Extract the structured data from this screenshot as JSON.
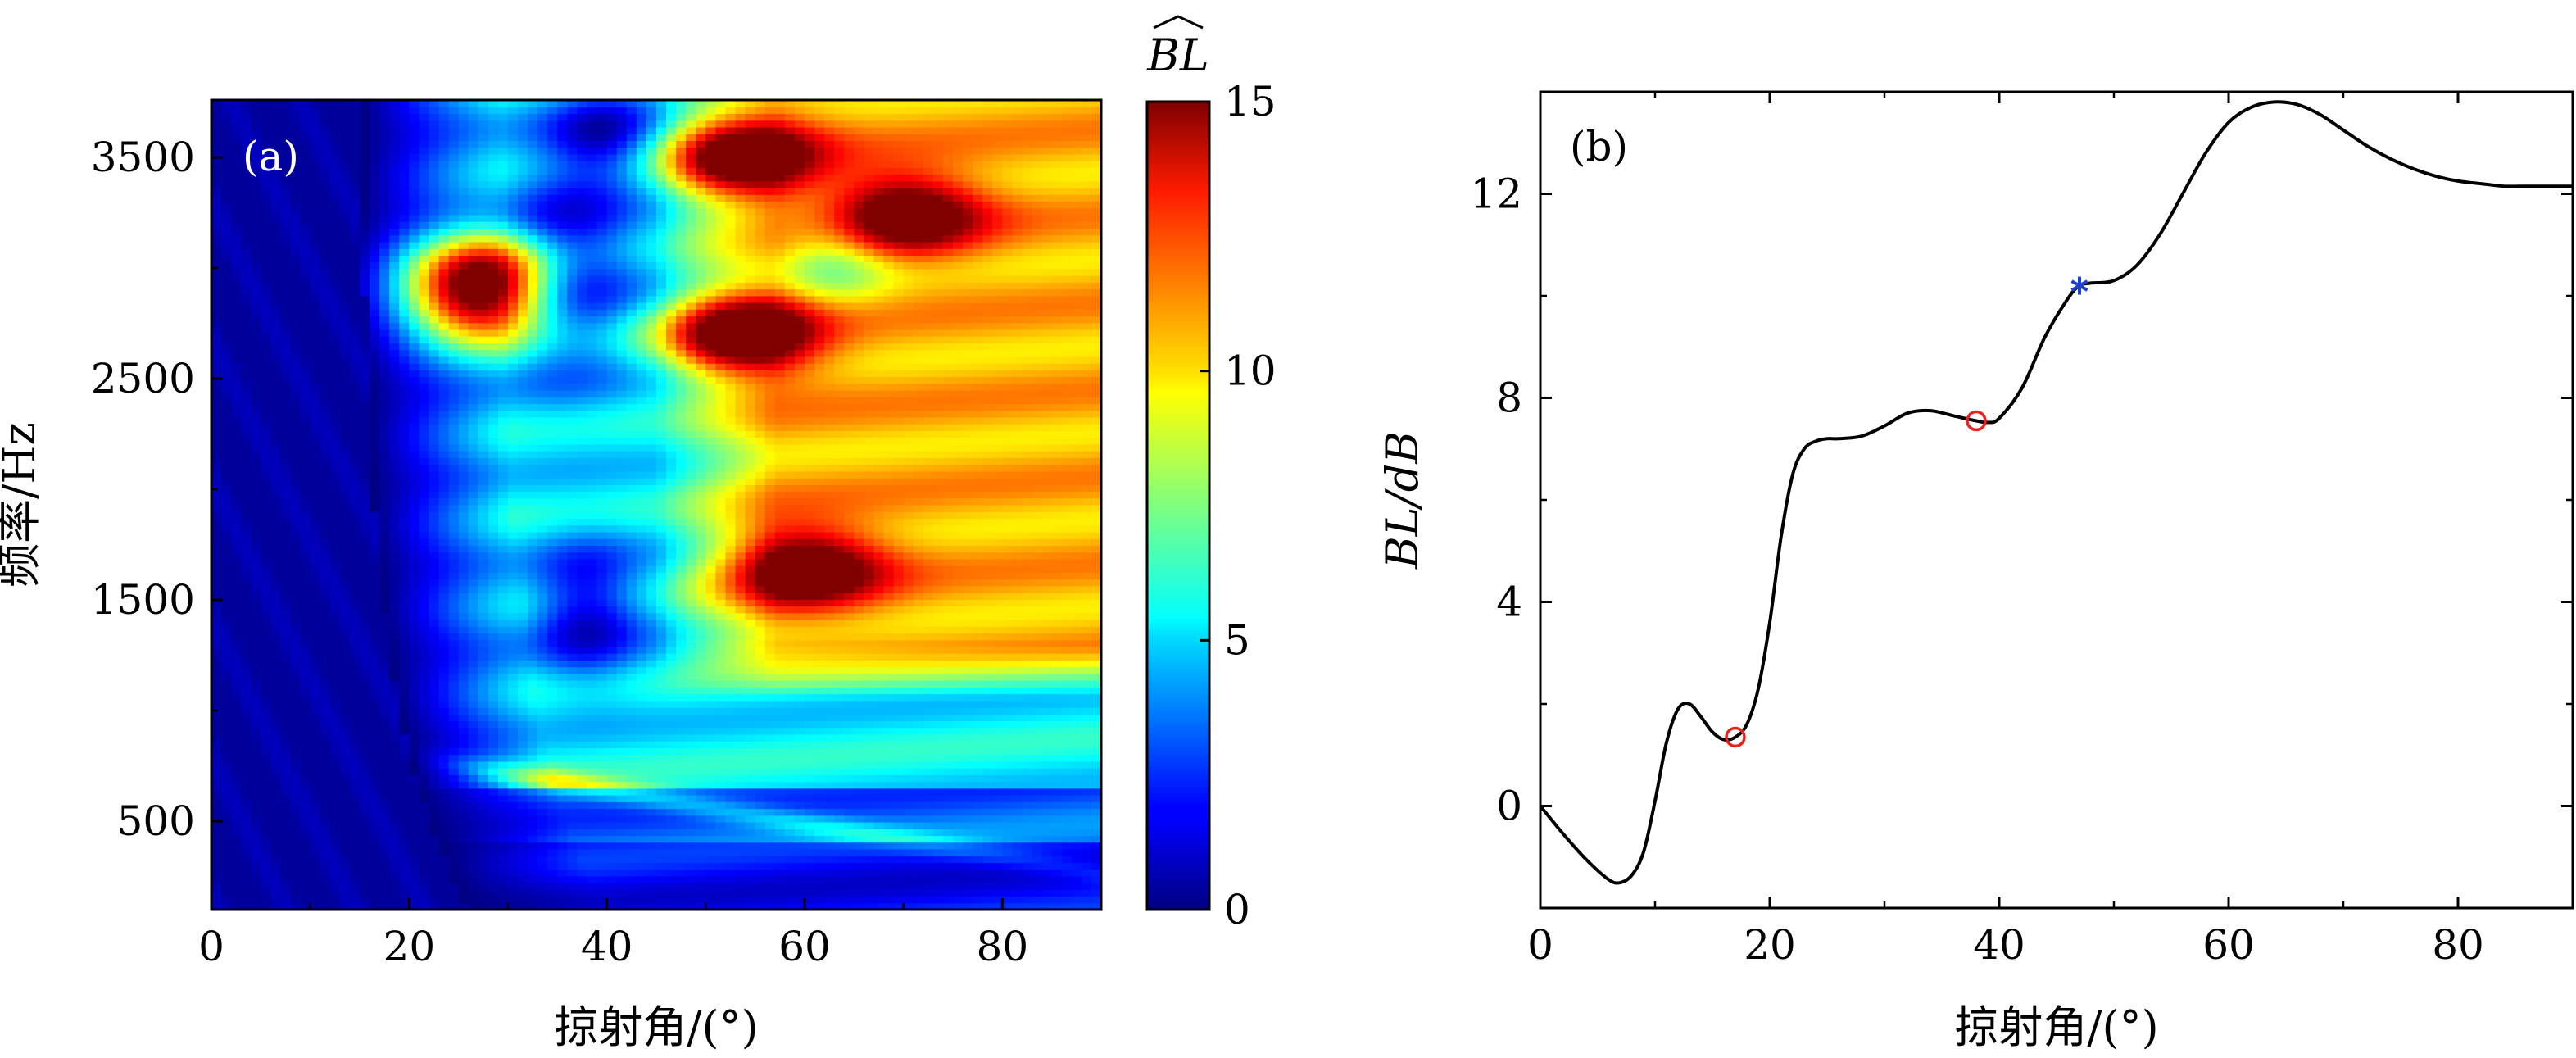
{
  "chart_data": [
    {
      "type": "heatmap",
      "panel_label": "(a)",
      "xlabel": "掠射角/(°)",
      "ylabel": "频率/Hz",
      "xlim": [
        0,
        90
      ],
      "ylim": [
        100,
        3760
      ],
      "x_ticks": [
        0,
        20,
        40,
        60,
        80
      ],
      "x_tick_labels": [
        "0",
        "20",
        "40",
        "60",
        "80"
      ],
      "y_ticks": [
        500,
        1500,
        2500,
        3500
      ],
      "y_tick_labels": [
        "500",
        "1500",
        "2500",
        "3500"
      ],
      "colorbar": {
        "title": "BL",
        "title_accent": "hat",
        "range": [
          0,
          15
        ],
        "ticks": [
          0,
          5,
          10,
          15
        ],
        "tick_labels": [
          "0",
          "5",
          "10",
          "15"
        ],
        "colormap": "jet"
      },
      "features": {
        "low_region_edge_deg_at_low_freq": 30,
        "low_region_edge_deg_at_high_freq": 19,
        "hotspots": [
          {
            "angle": 53,
            "freq": 2700,
            "value": 15
          },
          {
            "angle": 53,
            "freq": 3500,
            "value": 14.5
          },
          {
            "angle": 27,
            "freq": 2830,
            "value": 14.5
          },
          {
            "angle": 27,
            "freq": 3000,
            "value": 13.5
          },
          {
            "angle": 70,
            "freq": 3250,
            "value": 13
          },
          {
            "angle": 60,
            "freq": 1650,
            "value": 13
          }
        ]
      }
    },
    {
      "type": "line",
      "panel_label": "(b)",
      "xlabel": "掠射角/(°)",
      "ylabel": "BL/dB",
      "xlim": [
        0,
        90
      ],
      "ylim": [
        -2,
        14
      ],
      "x_ticks": [
        0,
        20,
        40,
        60,
        80
      ],
      "x_tick_labels": [
        "0",
        "20",
        "40",
        "60",
        "80"
      ],
      "y_ticks": [
        0,
        4,
        8,
        12
      ],
      "y_tick_labels": [
        "0",
        "4",
        "8",
        "12"
      ],
      "series": [
        {
          "name": "BL",
          "color": "#000000",
          "x": [
            0,
            2,
            4,
            6,
            7,
            8,
            9,
            10,
            11,
            12,
            13,
            14,
            15,
            16,
            17,
            18,
            19,
            20,
            21,
            22,
            23,
            24,
            25,
            26,
            28,
            30,
            32,
            34,
            36,
            38,
            39,
            40,
            42,
            44,
            46,
            47,
            48,
            50,
            52,
            54,
            56,
            58,
            60,
            62,
            64,
            66,
            68,
            70,
            72,
            74,
            76,
            78,
            80,
            82,
            84,
            86,
            88,
            90
          ],
          "y": [
            0,
            -0.55,
            -1.05,
            -1.45,
            -1.5,
            -1.35,
            -0.9,
            0.1,
            1.25,
            1.9,
            2.0,
            1.75,
            1.45,
            1.3,
            1.35,
            1.6,
            2.3,
            3.6,
            5.3,
            6.5,
            7.0,
            7.15,
            7.2,
            7.2,
            7.25,
            7.45,
            7.7,
            7.75,
            7.65,
            7.55,
            7.52,
            7.6,
            8.2,
            9.2,
            9.95,
            10.2,
            10.25,
            10.3,
            10.6,
            11.2,
            12.0,
            12.8,
            13.4,
            13.7,
            13.8,
            13.75,
            13.55,
            13.25,
            12.95,
            12.7,
            12.5,
            12.35,
            12.25,
            12.2,
            12.15,
            12.15,
            12.15,
            12.15
          ]
        }
      ],
      "markers": [
        {
          "shape": "circle",
          "color": "#e8231f",
          "x": 17,
          "y": 1.35
        },
        {
          "shape": "circle",
          "color": "#e8231f",
          "x": 38,
          "y": 7.55
        },
        {
          "shape": "asterisk",
          "color": "#1f3fd0",
          "x": 47,
          "y": 10.2
        }
      ]
    }
  ]
}
